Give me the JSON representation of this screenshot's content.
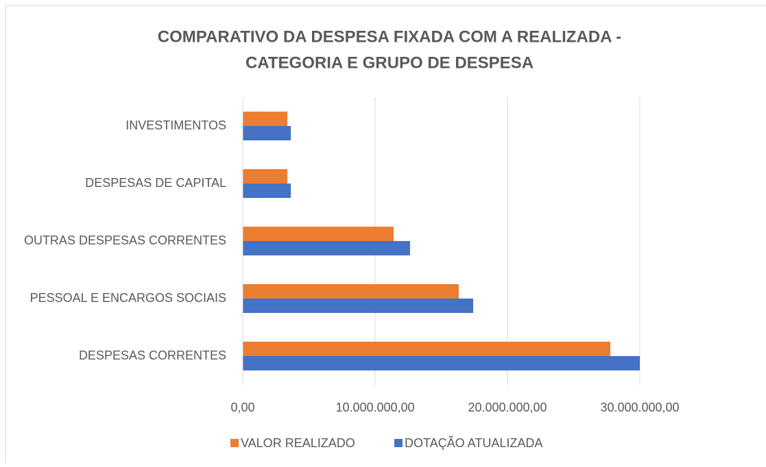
{
  "chart_data": {
    "type": "hbar",
    "title": [
      "COMPARATIVO DA DESPESA FIXADA COM A REALIZADA -",
      "CATEGORIA E GRUPO DE DESPESA"
    ],
    "categories": [
      "DESPESAS CORRENTES",
      "PESSOAL E ENCARGOS SOCIAIS",
      "OUTRAS DESPESAS CORRENTES",
      "DESPESAS DE CAPITAL",
      "INVESTIMENTOS"
    ],
    "series": [
      {
        "name": "VALOR REALIZADO",
        "color": "#ed7d31",
        "values": [
          27770000,
          16320000,
          11400000,
          3370000,
          3370000
        ]
      },
      {
        "name": "DOTAÇÃO ATUALIZADA",
        "color": "#4472c4",
        "values": [
          30000000,
          17410000,
          12640000,
          3630000,
          3630000
        ]
      }
    ],
    "xlim": [
      0,
      30000000
    ],
    "xticks": [
      {
        "value": 0,
        "label": "0,00"
      },
      {
        "value": 10000000,
        "label": "10.000.000,00"
      },
      {
        "value": 20000000,
        "label": "20.000.000,00"
      },
      {
        "value": 30000000,
        "label": "30.000.000,00"
      }
    ],
    "grid": true,
    "legend": "bottom"
  }
}
